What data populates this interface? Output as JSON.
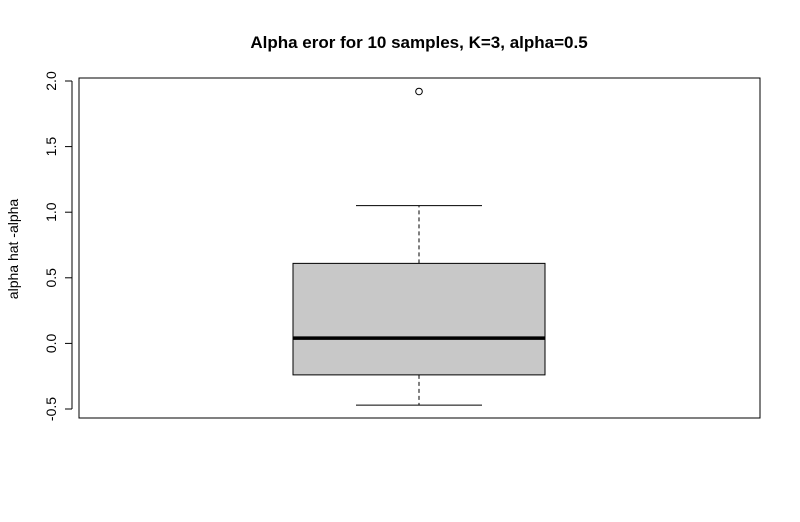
{
  "chart_data": {
    "type": "boxplot",
    "title": "Alpha eror for 10 samples, K=3, alpha=0.5",
    "xlabel": "",
    "ylabel": "alpha hat -alpha",
    "ylim": [
      -0.55,
      2.03
    ],
    "yticks": [
      -0.5,
      0.0,
      0.5,
      1.0,
      1.5,
      2.0
    ],
    "ytick_labels": [
      "-0.5",
      "0.0",
      "0.5",
      "1.0",
      "1.5",
      "2.0"
    ],
    "grid": false,
    "box": {
      "whisker_low": -0.47,
      "q1": -0.24,
      "median": 0.04,
      "q3": 0.61,
      "whisker_high": 1.05,
      "outliers": [
        1.92
      ]
    },
    "colors": {
      "box_fill": "#c8c8c8",
      "stroke": "#000000"
    }
  }
}
